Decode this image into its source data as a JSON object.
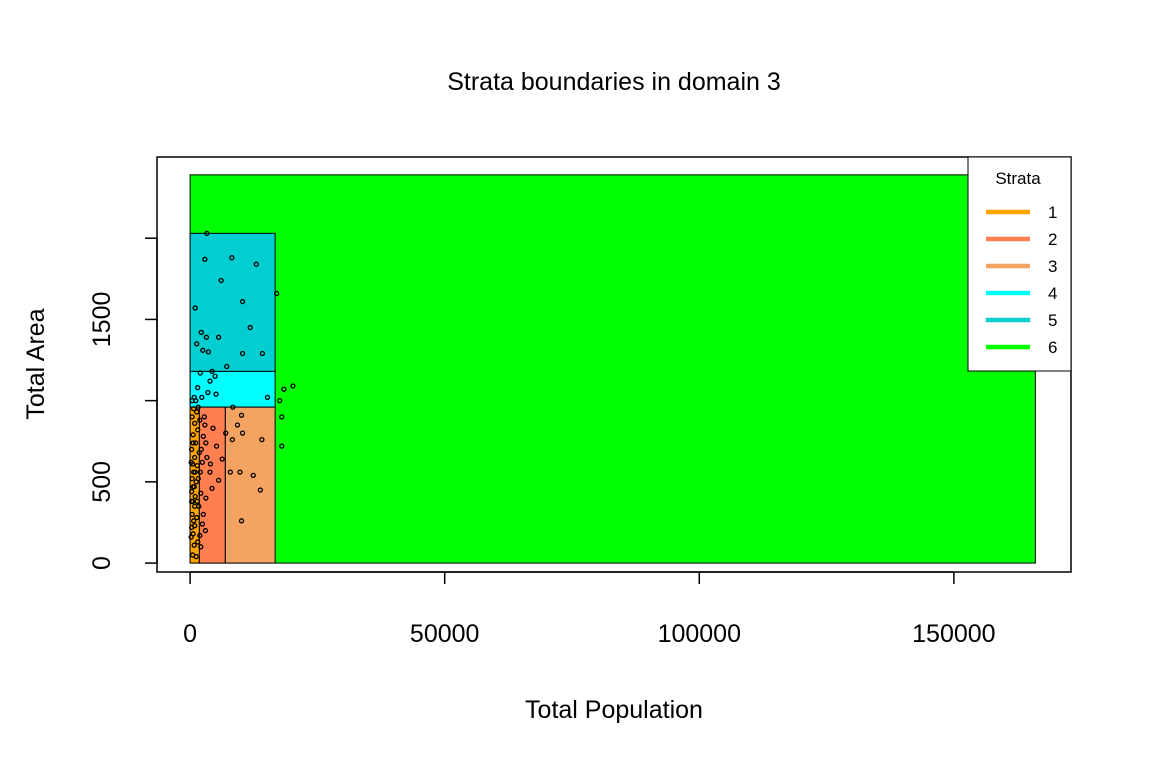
{
  "chart_data": {
    "type": "scatter",
    "title": "Strata boundaries in domain 3",
    "xlabel": "Total Population",
    "ylabel": "Total Area",
    "xlim": [
      -6500,
      173000
    ],
    "ylim": [
      -55,
      2500
    ],
    "x_ticks": [
      0,
      50000,
      100000,
      150000
    ],
    "y_ticks": [
      0,
      500,
      1000,
      1500,
      2000
    ],
    "x_tick_labels": [
      "0",
      "50000",
      "100000",
      "150000"
    ],
    "y_tick_labels": [
      "0",
      "500",
      "",
      "1500",
      ""
    ],
    "legend": {
      "title": "Strata",
      "position": "top-right",
      "entries": [
        {
          "label": "1",
          "color": "#FFA500"
        },
        {
          "label": "2",
          "color": "#FF7F50"
        },
        {
          "label": "3",
          "color": "#F4A460"
        },
        {
          "label": "4",
          "color": "#00FFFF"
        },
        {
          "label": "5",
          "color": "#00CED1"
        },
        {
          "label": "6",
          "color": "#00FF00"
        }
      ]
    },
    "strata": [
      {
        "name": "6",
        "color": "#00FF00",
        "x": [
          0,
          166000
        ],
        "y": [
          0,
          2390
        ]
      },
      {
        "name": "5",
        "color": "#00CED1",
        "x": [
          0,
          16700
        ],
        "y": [
          1180,
          2030
        ]
      },
      {
        "name": "4",
        "color": "#00FFFF",
        "x": [
          0,
          16700
        ],
        "y": [
          960,
          1180
        ]
      },
      {
        "name": "3",
        "color": "#F4A460",
        "x": [
          6900,
          16700
        ],
        "y": [
          0,
          960
        ]
      },
      {
        "name": "2",
        "color": "#FF7F50",
        "x": [
          1800,
          6900
        ],
        "y": [
          0,
          960
        ]
      },
      {
        "name": "1",
        "color": "#FFA500",
        "x": [
          0,
          1800
        ],
        "y": [
          0,
          960
        ]
      }
    ],
    "points": [
      [
        3300,
        2030
      ],
      [
        2900,
        1870
      ],
      [
        8200,
        1880
      ],
      [
        13000,
        1840
      ],
      [
        6100,
        1740
      ],
      [
        17000,
        1660
      ],
      [
        10300,
        1610
      ],
      [
        1000,
        1570
      ],
      [
        2200,
        1420
      ],
      [
        11800,
        1450
      ],
      [
        3200,
        1390
      ],
      [
        5600,
        1390
      ],
      [
        10300,
        1290
      ],
      [
        14200,
        1290
      ],
      [
        2500,
        1310
      ],
      [
        1300,
        1350
      ],
      [
        3600,
        1300
      ],
      [
        4300,
        1180
      ],
      [
        7200,
        1210
      ],
      [
        4900,
        1150
      ],
      [
        18400,
        1070
      ],
      [
        20200,
        1090
      ],
      [
        2000,
        1170
      ],
      [
        3900,
        1120
      ],
      [
        1500,
        1080
      ],
      [
        8400,
        960
      ],
      [
        3500,
        1050
      ],
      [
        5100,
        1040
      ],
      [
        15200,
        1020
      ],
      [
        17600,
        1000
      ],
      [
        10100,
        910
      ],
      [
        9300,
        850
      ],
      [
        4500,
        830
      ],
      [
        10300,
        800
      ],
      [
        7000,
        800
      ],
      [
        8300,
        760
      ],
      [
        18000,
        900
      ],
      [
        18000,
        720
      ],
      [
        14100,
        760
      ],
      [
        5200,
        720
      ],
      [
        2200,
        700
      ],
      [
        3300,
        650
      ],
      [
        6300,
        640
      ],
      [
        4000,
        610
      ],
      [
        3900,
        560
      ],
      [
        7900,
        560
      ],
      [
        9800,
        560
      ],
      [
        12400,
        540
      ],
      [
        5600,
        510
      ],
      [
        4300,
        460
      ],
      [
        13800,
        450
      ],
      [
        3100,
        400
      ],
      [
        2600,
        300
      ],
      [
        10100,
        260
      ],
      [
        3000,
        200
      ],
      [
        2100,
        100
      ],
      [
        1200,
        40
      ],
      [
        500,
        50
      ],
      [
        800,
        110
      ],
      [
        300,
        220
      ],
      [
        600,
        180
      ],
      [
        400,
        300
      ],
      [
        700,
        260
      ],
      [
        500,
        380
      ],
      [
        900,
        350
      ],
      [
        300,
        440
      ],
      [
        1000,
        410
      ],
      [
        600,
        470
      ],
      [
        400,
        520
      ],
      [
        1200,
        500
      ],
      [
        700,
        560
      ],
      [
        500,
        610
      ],
      [
        1400,
        600
      ],
      [
        900,
        650
      ],
      [
        1800,
        680
      ],
      [
        300,
        700
      ],
      [
        1100,
        740
      ],
      [
        600,
        790
      ],
      [
        1500,
        820
      ],
      [
        900,
        860
      ],
      [
        400,
        900
      ],
      [
        1300,
        930
      ],
      [
        1900,
        880
      ],
      [
        700,
        950
      ],
      [
        1100,
        1000
      ],
      [
        2600,
        780
      ],
      [
        2400,
        620
      ],
      [
        1600,
        520
      ],
      [
        2100,
        430
      ],
      [
        1700,
        350
      ],
      [
        1300,
        280
      ],
      [
        2400,
        240
      ],
      [
        1900,
        170
      ],
      [
        1500,
        130
      ],
      [
        900,
        230
      ],
      [
        200,
        160
      ],
      [
        800,
        470
      ],
      [
        1000,
        560
      ],
      [
        200,
        620
      ],
      [
        1600,
        960
      ],
      [
        2800,
        900
      ],
      [
        2300,
        1020
      ],
      [
        2900,
        850
      ],
      [
        3100,
        740
      ],
      [
        2000,
        560
      ],
      [
        800,
        1020
      ],
      [
        400,
        1000
      ],
      [
        600,
        740
      ],
      [
        300,
        380
      ],
      [
        1400,
        380
      ]
    ]
  }
}
